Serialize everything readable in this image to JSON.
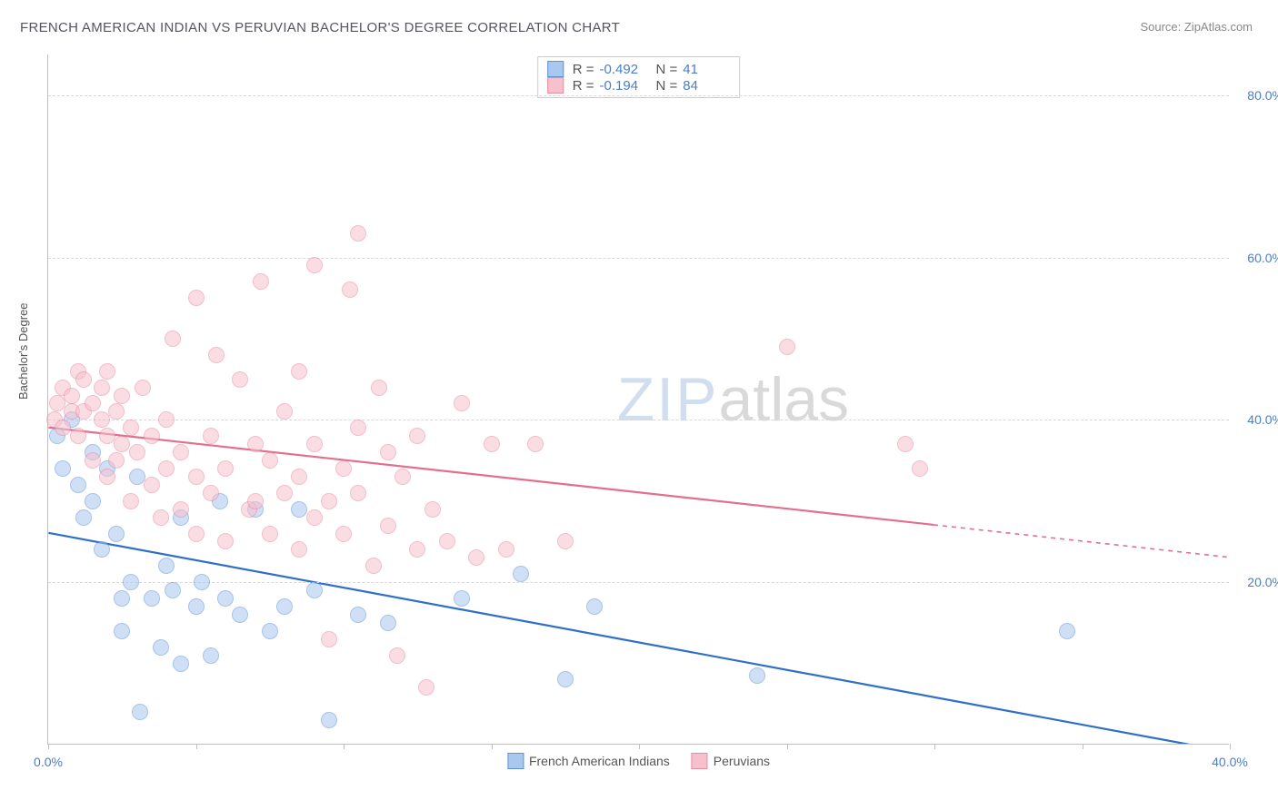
{
  "title": "FRENCH AMERICAN INDIAN VS PERUVIAN BACHELOR'S DEGREE CORRELATION CHART",
  "source_label": "Source: ZipAtlas.com",
  "y_axis_title": "Bachelor's Degree",
  "watermark": {
    "part1": "ZIP",
    "part2": "atlas"
  },
  "chart": {
    "type": "scatter",
    "background_color": "#ffffff",
    "grid_color": "#d8d8d8",
    "axis_color": "#bfbfbf",
    "tick_label_color": "#4a7ec9",
    "tick_fontsize": 14,
    "title_fontsize": 15,
    "title_color": "#555560",
    "xlim": [
      0,
      40
    ],
    "ylim": [
      0,
      85
    ],
    "y_ticks": [
      20,
      40,
      60,
      80
    ],
    "y_tick_labels": [
      "20.0%",
      "40.0%",
      "60.0%",
      "80.0%"
    ],
    "x_ticks": [
      0,
      5,
      10,
      15,
      20,
      25,
      30,
      35,
      40
    ],
    "x_tick_labels": [
      "0.0%",
      "",
      "",
      "",
      "",
      "",
      "",
      "",
      "40.0%"
    ],
    "point_radius": 9,
    "point_opacity": 0.55,
    "point_border_width": 1.2
  },
  "series": [
    {
      "id": "french_american_indians",
      "label": "French American Indians",
      "fill_color": "#a9c8ef",
      "border_color": "#5f93d6",
      "line_color": "#2f6fc5",
      "r_value": "-0.492",
      "n_value": "41",
      "trend": {
        "x1": 0,
        "y1": 26,
        "x2": 40,
        "y2": -1,
        "dash_after_x": 40
      },
      "points": [
        [
          0.3,
          38
        ],
        [
          0.5,
          34
        ],
        [
          0.8,
          40
        ],
        [
          1.0,
          32
        ],
        [
          1.2,
          28
        ],
        [
          1.5,
          30
        ],
        [
          1.5,
          36
        ],
        [
          1.8,
          24
        ],
        [
          2.0,
          34
        ],
        [
          2.3,
          26
        ],
        [
          2.5,
          18
        ],
        [
          2.5,
          14
        ],
        [
          2.8,
          20
        ],
        [
          3.1,
          4
        ],
        [
          3.0,
          33
        ],
        [
          3.5,
          18
        ],
        [
          3.8,
          12
        ],
        [
          4.0,
          22
        ],
        [
          4.2,
          19
        ],
        [
          4.5,
          10
        ],
        [
          4.5,
          28
        ],
        [
          5.0,
          17
        ],
        [
          5.2,
          20
        ],
        [
          5.5,
          11
        ],
        [
          5.8,
          30
        ],
        [
          6.0,
          18
        ],
        [
          6.5,
          16
        ],
        [
          7.0,
          29
        ],
        [
          7.5,
          14
        ],
        [
          8.0,
          17
        ],
        [
          8.5,
          29
        ],
        [
          9.0,
          19
        ],
        [
          9.5,
          3
        ],
        [
          10.5,
          16
        ],
        [
          11.5,
          15
        ],
        [
          14.0,
          18
        ],
        [
          16.0,
          21
        ],
        [
          17.5,
          8
        ],
        [
          18.5,
          17
        ],
        [
          24.0,
          8.5
        ],
        [
          34.5,
          14
        ]
      ]
    },
    {
      "id": "peruvians",
      "label": "Peruvians",
      "fill_color": "#f6c1cd",
      "border_color": "#e88aa2",
      "line_color": "#e36f8e",
      "r_value": "-0.194",
      "n_value": "84",
      "trend": {
        "x1": 0,
        "y1": 39,
        "x2": 40,
        "y2": 23,
        "dash_after_x": 30
      },
      "points": [
        [
          0.2,
          40
        ],
        [
          0.3,
          42
        ],
        [
          0.5,
          39
        ],
        [
          0.5,
          44
        ],
        [
          0.8,
          41
        ],
        [
          0.8,
          43
        ],
        [
          1.0,
          38
        ],
        [
          1.0,
          46
        ],
        [
          1.2,
          41
        ],
        [
          1.2,
          45
        ],
        [
          1.5,
          35
        ],
        [
          1.5,
          42
        ],
        [
          1.8,
          40
        ],
        [
          1.8,
          44
        ],
        [
          2.0,
          33
        ],
        [
          2.0,
          38
        ],
        [
          2.0,
          46
        ],
        [
          2.3,
          35
        ],
        [
          2.3,
          41
        ],
        [
          2.5,
          37
        ],
        [
          2.5,
          43
        ],
        [
          2.8,
          30
        ],
        [
          2.8,
          39
        ],
        [
          3.0,
          36
        ],
        [
          3.2,
          44
        ],
        [
          3.5,
          32
        ],
        [
          3.5,
          38
        ],
        [
          3.8,
          28
        ],
        [
          4.0,
          34
        ],
        [
          4.0,
          40
        ],
        [
          4.2,
          50
        ],
        [
          4.5,
          29
        ],
        [
          4.5,
          36
        ],
        [
          5.0,
          26
        ],
        [
          5.0,
          33
        ],
        [
          5.0,
          55
        ],
        [
          5.5,
          31
        ],
        [
          5.5,
          38
        ],
        [
          5.7,
          48
        ],
        [
          6.0,
          25
        ],
        [
          6.0,
          34
        ],
        [
          6.5,
          45
        ],
        [
          6.8,
          29
        ],
        [
          7.0,
          37
        ],
        [
          7.0,
          30
        ],
        [
          7.2,
          57
        ],
        [
          7.5,
          26
        ],
        [
          7.5,
          35
        ],
        [
          8.0,
          31
        ],
        [
          8.0,
          41
        ],
        [
          8.5,
          24
        ],
        [
          8.5,
          33
        ],
        [
          8.5,
          46
        ],
        [
          9.0,
          28
        ],
        [
          9.0,
          37
        ],
        [
          9.0,
          59
        ],
        [
          9.5,
          13
        ],
        [
          9.5,
          30
        ],
        [
          10.0,
          34
        ],
        [
          10.0,
          26
        ],
        [
          10.2,
          56
        ],
        [
          10.5,
          31
        ],
        [
          10.5,
          39
        ],
        [
          10.5,
          63
        ],
        [
          11.0,
          22
        ],
        [
          11.2,
          44
        ],
        [
          11.5,
          27
        ],
        [
          11.5,
          36
        ],
        [
          11.8,
          11
        ],
        [
          12.0,
          33
        ],
        [
          12.5,
          24
        ],
        [
          12.5,
          38
        ],
        [
          12.8,
          7
        ],
        [
          13.0,
          29
        ],
        [
          13.5,
          25
        ],
        [
          14.0,
          42
        ],
        [
          14.5,
          23
        ],
        [
          15.0,
          37
        ],
        [
          15.5,
          24
        ],
        [
          16.5,
          37
        ],
        [
          17.5,
          25
        ],
        [
          25.0,
          49
        ],
        [
          29.0,
          37
        ],
        [
          29.5,
          34
        ]
      ]
    }
  ],
  "corr_legend": {
    "r_label": "R =",
    "n_label": "N ="
  },
  "series_legend_order": [
    "french_american_indians",
    "peruvians"
  ]
}
